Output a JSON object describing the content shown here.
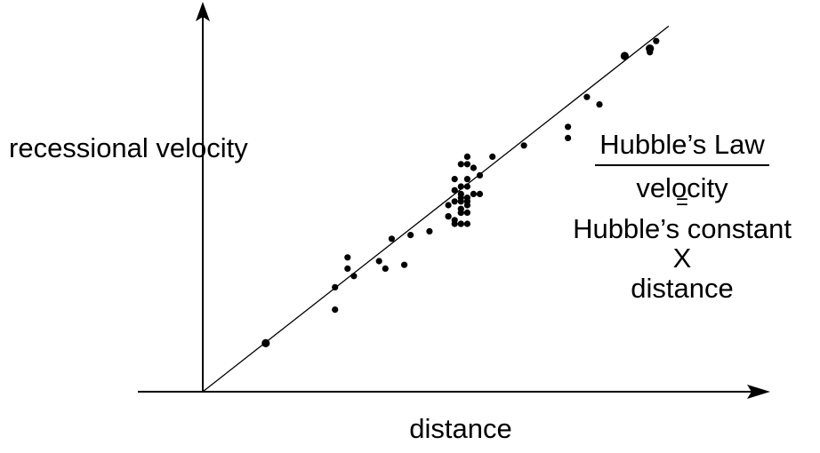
{
  "chart_data": {
    "type": "scatter",
    "title": "",
    "xlabel": "distance",
    "ylabel": "recessional velocity",
    "ticks": "none",
    "grid": false,
    "legend": "none",
    "xlim": [
      0,
      100
    ],
    "ylim": [
      0,
      100
    ],
    "points": [
      [
        10,
        13
      ],
      [
        21,
        28
      ],
      [
        21,
        22
      ],
      [
        23,
        36
      ],
      [
        23,
        33
      ],
      [
        24,
        31
      ],
      [
        28,
        35
      ],
      [
        29,
        33
      ],
      [
        30,
        41
      ],
      [
        32,
        34
      ],
      [
        33,
        42
      ],
      [
        36,
        43
      ],
      [
        39,
        47
      ],
      [
        39,
        50
      ],
      [
        39,
        47
      ],
      [
        40,
        51
      ],
      [
        40,
        46
      ],
      [
        40,
        54
      ],
      [
        40,
        57
      ],
      [
        40,
        45
      ],
      [
        41,
        48
      ],
      [
        41,
        45
      ],
      [
        41,
        49
      ],
      [
        41,
        51
      ],
      [
        41,
        52
      ],
      [
        41,
        53
      ],
      [
        41,
        55
      ],
      [
        41,
        45
      ],
      [
        41,
        48
      ],
      [
        41,
        61
      ],
      [
        42,
        55
      ],
      [
        42,
        61
      ],
      [
        42,
        63
      ],
      [
        42,
        57
      ],
      [
        42,
        52
      ],
      [
        42,
        50
      ],
      [
        42,
        48
      ],
      [
        42,
        45
      ],
      [
        42,
        51
      ],
      [
        43,
        60
      ],
      [
        43,
        53
      ],
      [
        44,
        53
      ],
      [
        44,
        58
      ],
      [
        46,
        63
      ],
      [
        51,
        66
      ],
      [
        58,
        71
      ],
      [
        58,
        68
      ],
      [
        61,
        79
      ],
      [
        63,
        77
      ],
      [
        67,
        90
      ],
      [
        71,
        91
      ],
      [
        71,
        92
      ],
      [
        72,
        94
      ]
    ],
    "fit_line": {
      "x": [
        0,
        74
      ],
      "y": [
        0,
        98
      ]
    }
  },
  "annotation": {
    "title": "Hubble’s Law",
    "line1": "velocity",
    "equals": "=",
    "line2": "Hubble’s constant",
    "times": "X",
    "line3": "distance"
  }
}
